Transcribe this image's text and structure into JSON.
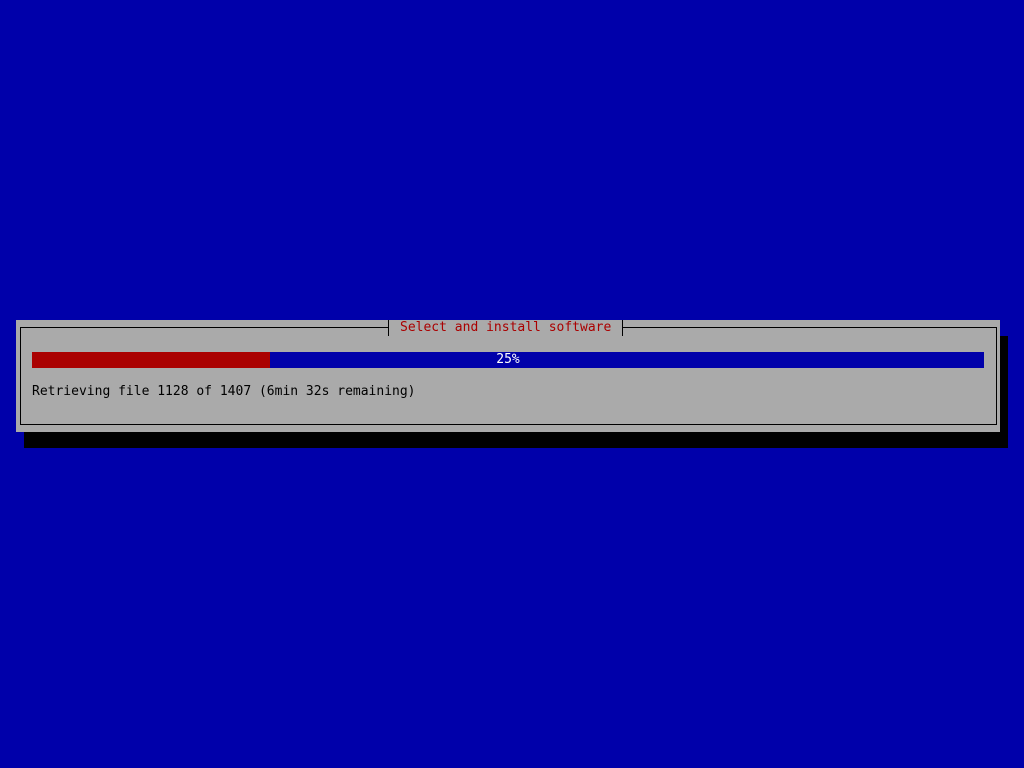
{
  "dialog": {
    "title": "Select and install software",
    "progress": {
      "percent": 25,
      "label": "25%"
    },
    "message": "Retrieving file 1128 of 1407 (6min 32s remaining)"
  },
  "colors": {
    "background": "#0000aa",
    "dialog": "#aaaaaa",
    "title": "#aa0000",
    "progress_fill": "#aa0000",
    "progress_track": "#0000aa"
  }
}
